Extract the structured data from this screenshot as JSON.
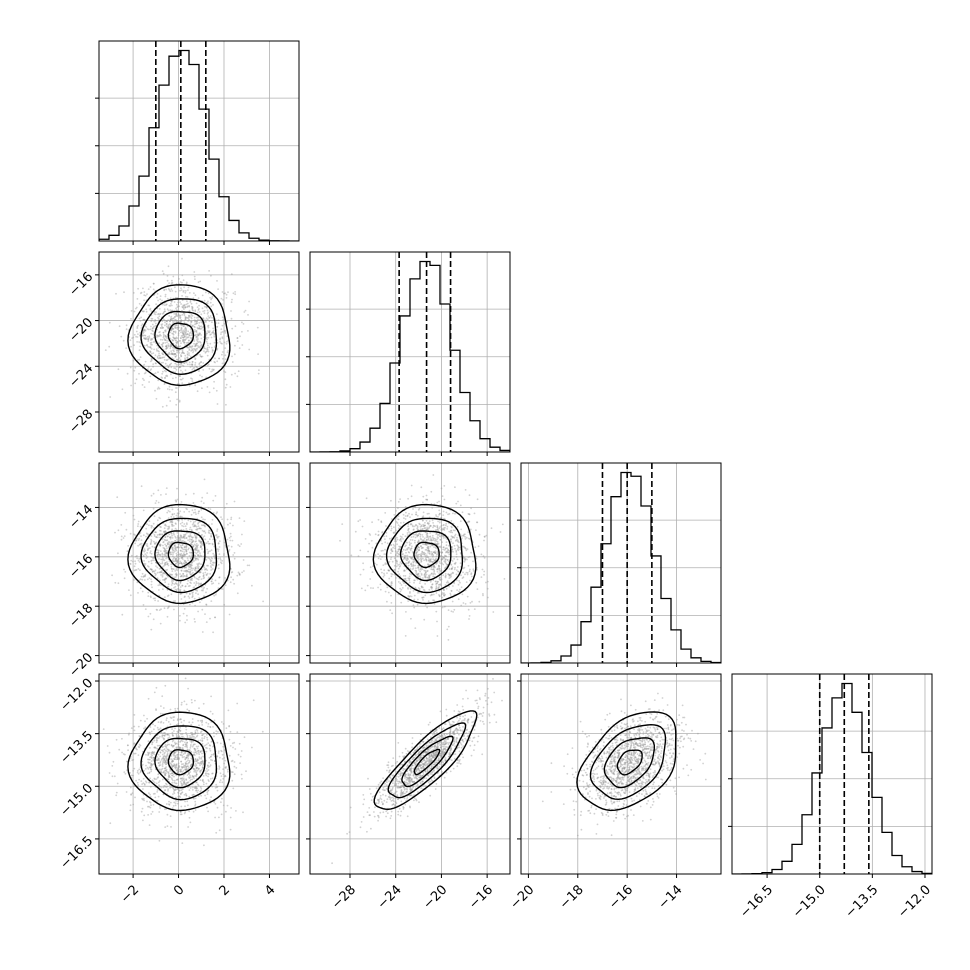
{
  "chart_data": {
    "type": "corner",
    "title": "",
    "grid": true,
    "parameters": [
      {
        "range": [
          -3.5,
          5.3
        ],
        "ticks": [
          -2,
          0,
          2,
          4
        ],
        "tick_labels": [
          "−2",
          "0",
          "2",
          "4"
        ],
        "quantiles": [
          -1.0,
          0.1,
          1.2
        ],
        "mean": 0.1,
        "sd": 1.1
      },
      {
        "range": [
          -31.5,
          -14.0
        ],
        "ticks": [
          -28,
          -24,
          -20,
          -16
        ],
        "tick_labels": [
          "−28",
          "−24",
          "−20",
          "−16"
        ],
        "quantiles": [
          -23.7,
          -21.3,
          -19.2
        ],
        "mean": -21.3,
        "sd": 2.2
      },
      {
        "range": [
          -20.3,
          -12.2
        ],
        "ticks": [
          -20,
          -18,
          -16,
          -14
        ],
        "tick_labels": [
          "−20",
          "−18",
          "−16",
          "−14"
        ],
        "quantiles": [
          -17.0,
          -16.0,
          -15.0
        ],
        "mean": -15.9,
        "sd": 1.0
      },
      {
        "range": [
          -17.5,
          -11.8
        ],
        "ticks": [
          -16.5,
          -15.0,
          -13.5,
          -12.0
        ],
        "tick_labels": [
          "−16.5",
          "−15.0",
          "−13.5",
          "−12.0"
        ],
        "quantiles": [
          -15.0,
          -14.3,
          -13.6
        ],
        "mean": -14.3,
        "sd": 0.7
      }
    ],
    "correlations": [
      {
        "row": 1,
        "col": 0,
        "rho": 0.0
      },
      {
        "row": 2,
        "col": 0,
        "rho": 0.0
      },
      {
        "row": 2,
        "col": 1,
        "rho": 0.0
      },
      {
        "row": 3,
        "col": 0,
        "rho": 0.0
      },
      {
        "row": 3,
        "col": 1,
        "rho": 0.85
      },
      {
        "row": 3,
        "col": 2,
        "rho": 0.4
      }
    ],
    "histogram_bins": 20,
    "contour_levels": [
      "0.5-sigma",
      "1-sigma",
      "1.5-sigma",
      "2-sigma"
    ],
    "colors": {
      "line": "#000000",
      "points": "#9a9a9a",
      "grid": "#b0b0b0"
    }
  }
}
